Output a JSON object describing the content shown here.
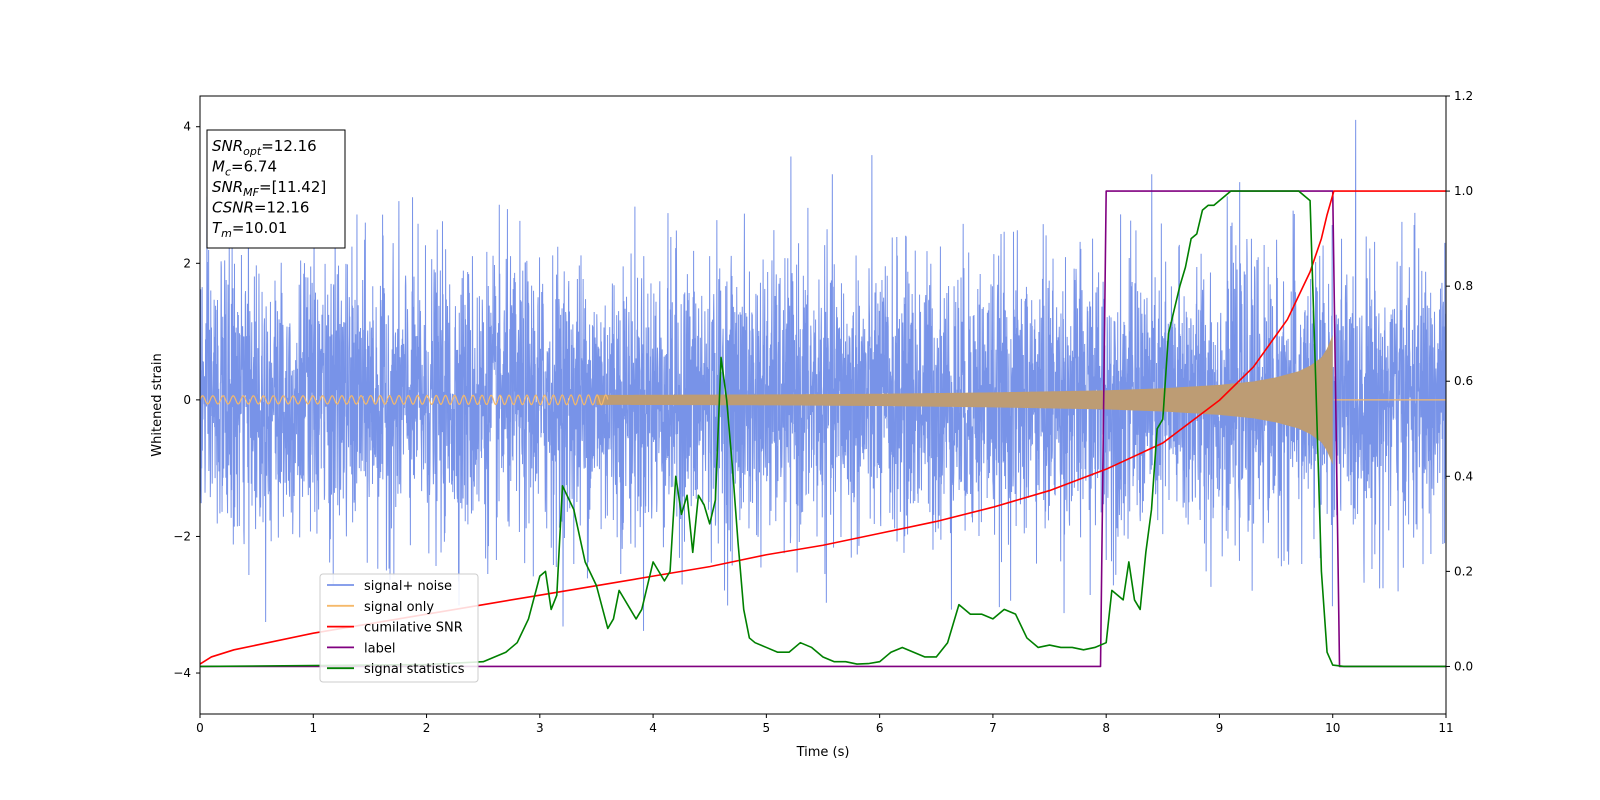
{
  "chart_data": {
    "type": "line",
    "title": "",
    "xlabel": "Time (s)",
    "ylabel": "Whitened strain",
    "xlim": [
      0,
      11
    ],
    "ylim_left": [
      -4.6,
      4.45
    ],
    "ylim_right": [
      -0.1,
      1.2
    ],
    "x_ticks": [
      0,
      1,
      2,
      3,
      4,
      5,
      6,
      7,
      8,
      9,
      10,
      11
    ],
    "y_ticks_left": [
      -4,
      -2,
      0,
      2,
      4
    ],
    "y_ticks_right": [
      0.0,
      0.2,
      0.4,
      0.6,
      0.8,
      1.0,
      1.2
    ],
    "grid": false,
    "legend_position": "lower-left",
    "annotation": [
      {
        "base": "SNR",
        "sub": "opt",
        "value": "=12.16"
      },
      {
        "base": "M",
        "sub": "c",
        "value": "=6.74"
      },
      {
        "base": "SNR",
        "sub": "MF",
        "value": "=[11.42]"
      },
      {
        "base": "CSNR",
        "sub": "",
        "value": "=12.16"
      },
      {
        "base": "T",
        "sub": "m",
        "value": "=10.01"
      }
    ],
    "series": [
      {
        "name": "signal+ noise",
        "axis": "left",
        "color": "#7893e8",
        "kind": "noise",
        "sigma": 1.0,
        "x_range": [
          0,
          11
        ]
      },
      {
        "name": "signal only",
        "axis": "left",
        "color": "#f5b96a",
        "fill_color": "#bd9c74",
        "kind": "chirp_envelope",
        "x": [
          0,
          1,
          2,
          3,
          4,
          5,
          6,
          7,
          8,
          8.5,
          9,
          9.3,
          9.5,
          9.7,
          9.8,
          9.9,
          9.95,
          10.0,
          10.01,
          11
        ],
        "amplitude": [
          0.06,
          0.06,
          0.065,
          0.07,
          0.075,
          0.08,
          0.09,
          0.11,
          0.14,
          0.17,
          0.22,
          0.27,
          0.33,
          0.42,
          0.5,
          0.62,
          0.75,
          0.95,
          0.0,
          0.0
        ]
      },
      {
        "name": "cumilative SNR",
        "axis": "right",
        "color": "#ff0000",
        "x": [
          0,
          0.1,
          0.3,
          0.5,
          1,
          1.5,
          2,
          2.5,
          3,
          3.5,
          4,
          4.5,
          5,
          5.5,
          6,
          6.5,
          7,
          7.5,
          8,
          8.5,
          9,
          9.3,
          9.6,
          9.8,
          9.9,
          9.95,
          10.01,
          11
        ],
        "values": [
          0.005,
          0.02,
          0.035,
          0.045,
          0.07,
          0.09,
          0.11,
          0.13,
          0.15,
          0.17,
          0.19,
          0.21,
          0.235,
          0.255,
          0.28,
          0.305,
          0.335,
          0.37,
          0.415,
          0.47,
          0.56,
          0.63,
          0.73,
          0.83,
          0.9,
          0.95,
          1.0,
          1.0
        ]
      },
      {
        "name": "label",
        "axis": "right",
        "color": "#800080",
        "x": [
          0,
          7.95,
          8.0,
          10.0,
          10.06,
          11
        ],
        "values": [
          0,
          0,
          1,
          1,
          0,
          0
        ]
      },
      {
        "name": "signal statistics",
        "axis": "right",
        "color": "#008000",
        "x": [
          0,
          1.0,
          2.0,
          2.5,
          2.7,
          2.8,
          2.9,
          3.0,
          3.05,
          3.1,
          3.15,
          3.2,
          3.3,
          3.4,
          3.5,
          3.6,
          3.65,
          3.7,
          3.8,
          3.85,
          3.9,
          4.0,
          4.1,
          4.15,
          4.2,
          4.25,
          4.3,
          4.35,
          4.4,
          4.45,
          4.5,
          4.55,
          4.6,
          4.65,
          4.7,
          4.75,
          4.8,
          4.85,
          4.9,
          5.0,
          5.1,
          5.2,
          5.3,
          5.4,
          5.5,
          5.6,
          5.7,
          5.8,
          5.9,
          6.0,
          6.1,
          6.2,
          6.3,
          6.4,
          6.5,
          6.6,
          6.7,
          6.8,
          6.9,
          7.0,
          7.1,
          7.2,
          7.3,
          7.4,
          7.5,
          7.6,
          7.7,
          7.8,
          7.9,
          8.0,
          8.05,
          8.1,
          8.15,
          8.2,
          8.25,
          8.3,
          8.35,
          8.4,
          8.45,
          8.5,
          8.55,
          8.6,
          8.65,
          8.7,
          8.75,
          8.8,
          8.85,
          8.9,
          8.95,
          9.0,
          9.1,
          9.2,
          9.3,
          9.4,
          9.5,
          9.6,
          9.7,
          9.75,
          9.8,
          9.85,
          9.9,
          9.95,
          10.0,
          10.1,
          10.5,
          11
        ],
        "values": [
          0.0,
          0.002,
          0.004,
          0.01,
          0.03,
          0.05,
          0.1,
          0.19,
          0.2,
          0.12,
          0.15,
          0.38,
          0.33,
          0.22,
          0.17,
          0.08,
          0.1,
          0.16,
          0.12,
          0.1,
          0.12,
          0.22,
          0.18,
          0.2,
          0.4,
          0.32,
          0.36,
          0.24,
          0.36,
          0.34,
          0.3,
          0.35,
          0.65,
          0.56,
          0.42,
          0.26,
          0.12,
          0.06,
          0.05,
          0.04,
          0.03,
          0.03,
          0.05,
          0.04,
          0.02,
          0.01,
          0.01,
          0.005,
          0.006,
          0.01,
          0.03,
          0.04,
          0.03,
          0.02,
          0.02,
          0.05,
          0.13,
          0.11,
          0.11,
          0.1,
          0.12,
          0.11,
          0.06,
          0.04,
          0.045,
          0.04,
          0.04,
          0.035,
          0.04,
          0.05,
          0.16,
          0.15,
          0.14,
          0.22,
          0.14,
          0.12,
          0.24,
          0.33,
          0.5,
          0.52,
          0.7,
          0.75,
          0.8,
          0.84,
          0.9,
          0.91,
          0.96,
          0.97,
          0.97,
          0.98,
          1.0,
          1.0,
          1.0,
          1.0,
          1.0,
          1.0,
          1.0,
          0.99,
          0.98,
          0.6,
          0.2,
          0.03,
          0.003,
          0.0,
          0.0,
          0.0
        ]
      }
    ]
  }
}
